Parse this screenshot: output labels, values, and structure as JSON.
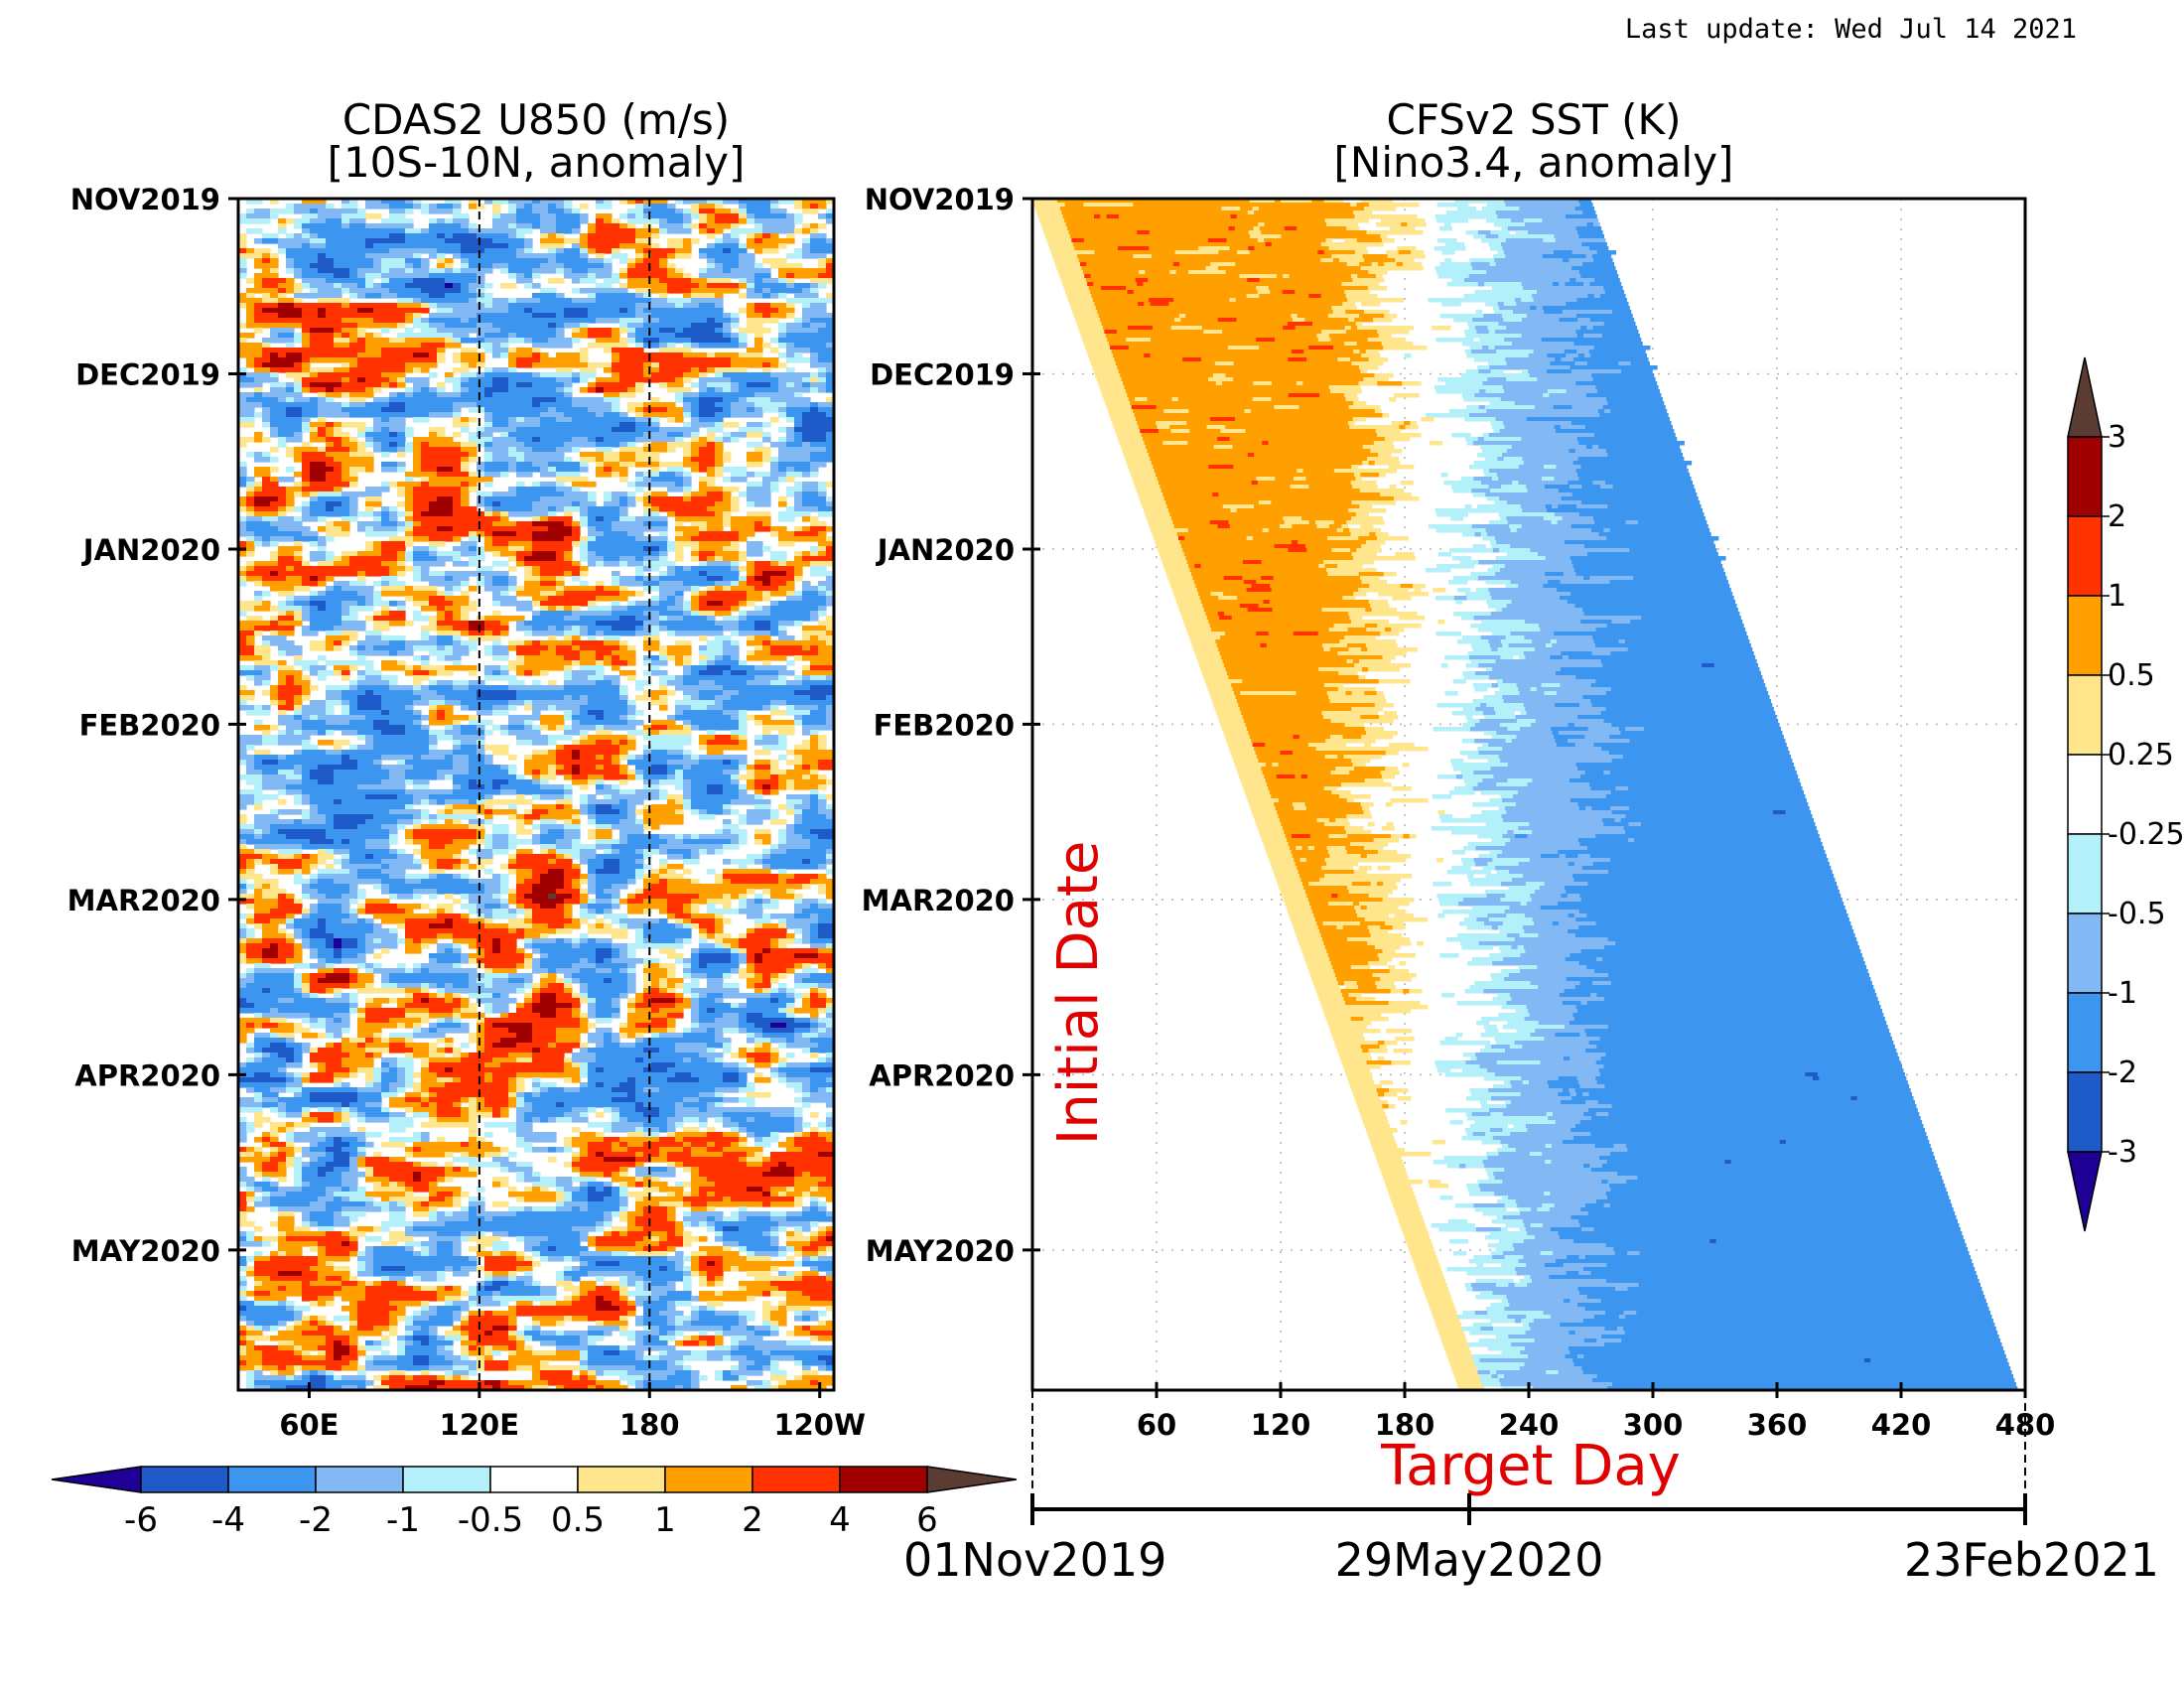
{
  "header": {
    "last_update": "Last update: Wed Jul 14 2021"
  },
  "chart_data": [
    {
      "type": "heatmap",
      "title": "CDAS2 U850 (m/s)",
      "subtitle": "[10S-10N, anomaly]",
      "x_ticks": [
        "60E",
        "120E",
        "180",
        "120W"
      ],
      "x_tick_lon": [
        60,
        120,
        180,
        240
      ],
      "x_range_lon": [
        35,
        245
      ],
      "dashed_lines_lon": [
        120,
        180
      ],
      "y_ticks": [
        "NOV2019",
        "DEC2019",
        "JAN2020",
        "FEB2020",
        "MAR2020",
        "APR2020",
        "MAY2020"
      ],
      "y_range_months": [
        0,
        6.8
      ],
      "colorbar": {
        "labels": [
          "-6",
          "-4",
          "-2",
          "-1",
          "-0.5",
          "0.5",
          "1",
          "2",
          "4",
          "6"
        ],
        "colors": [
          "#1e0096",
          "#1e5ac8",
          "#3c96f0",
          "#82b9f5",
          "#b4f0fa",
          "#ffffff",
          "#ffe68c",
          "#ffa000",
          "#ff3200",
          "#a00000",
          "#5a3c32"
        ]
      }
    },
    {
      "type": "heatmap",
      "title": "CFSv2 SST (K)",
      "subtitle": "[Nino3.4, anomaly]",
      "x_ticks": [
        "60",
        "120",
        "180",
        "240",
        "300",
        "360",
        "420",
        "480"
      ],
      "x_range": [
        0,
        480
      ],
      "xlabel": "Target Day",
      "ylabel": "Initial Date",
      "y_ticks": [
        "NOV2019",
        "DEC2019",
        "JAN2020",
        "FEB2020",
        "MAR2020",
        "APR2020",
        "MAY2020"
      ],
      "y_range_months": [
        0,
        6.8
      ],
      "forecast_window_days": [
        0,
        270
      ],
      "date_axis": [
        "01Nov2019",
        "29May2020",
        "23Feb2021"
      ],
      "colorbar": {
        "labels": [
          "3",
          "2",
          "1",
          "0.5",
          "0.25",
          "-0.25",
          "-0.5",
          "-1",
          "-2",
          "-3"
        ],
        "colors": [
          "#5a3c32",
          "#a00000",
          "#ff3200",
          "#ffa000",
          "#ffe68c",
          "#ffffff",
          "#b4f0fa",
          "#82b9f5",
          "#3c96f0",
          "#1e5ac8",
          "#1e0096"
        ]
      }
    }
  ]
}
